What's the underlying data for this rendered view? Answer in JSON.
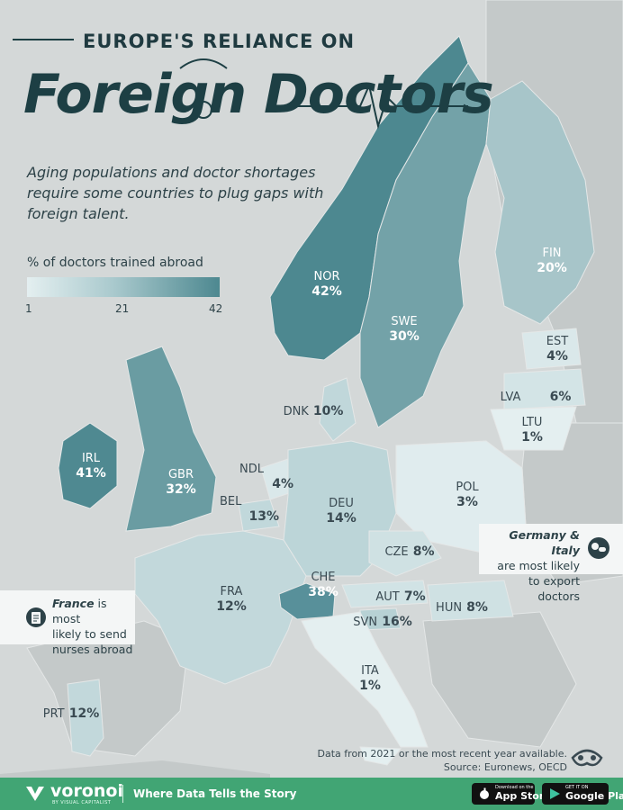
{
  "header": {
    "eyebrow": "EUROPE'S RELIANCE ON",
    "title": "Foreign Doctors",
    "subtitle": "Aging populations and doctor shortages require some countries to plug gaps with foreign talent."
  },
  "legend": {
    "title": "% of doctors trained abroad",
    "min": "1",
    "mid": "21",
    "max": "42",
    "color_low": "#e4eff0",
    "color_high": "#4d8890"
  },
  "countries": [
    {
      "code": "NOR",
      "value": "42%"
    },
    {
      "code": "SWE",
      "value": "30%"
    },
    {
      "code": "FIN",
      "value": "20%"
    },
    {
      "code": "EST",
      "value": "4%"
    },
    {
      "code": "LVA",
      "value": "6%"
    },
    {
      "code": "LTU",
      "value": "1%"
    },
    {
      "code": "DNK",
      "value": "10%"
    },
    {
      "code": "IRL",
      "value": "41%"
    },
    {
      "code": "GBR",
      "value": "32%"
    },
    {
      "code": "NDL",
      "value": "4%"
    },
    {
      "code": "BEL",
      "value": "13%"
    },
    {
      "code": "DEU",
      "value": "14%"
    },
    {
      "code": "POL",
      "value": "3%"
    },
    {
      "code": "CZE",
      "value": "8%"
    },
    {
      "code": "FRA",
      "value": "12%"
    },
    {
      "code": "CHE",
      "value": "38%"
    },
    {
      "code": "AUT",
      "value": "7%"
    },
    {
      "code": "HUN",
      "value": "8%"
    },
    {
      "code": "SVN",
      "value": "16%"
    },
    {
      "code": "ITA",
      "value": "1%"
    },
    {
      "code": "PRT",
      "value": "12%"
    }
  ],
  "callouts": {
    "germany_italy": {
      "bold": "Germany & Italy",
      "rest": "are most likely to export doctors"
    },
    "france": {
      "bold": "France",
      "rest1": "is most",
      "rest2": "likely to send nurses abroad"
    }
  },
  "source": {
    "line1": "Data from 2021 or the most recent year available.",
    "line2": "Source: Euronews, OECD"
  },
  "footer": {
    "brand": "voronoi",
    "brand_sub": "BY VISUAL CAPITALIST",
    "tagline": "Where Data Tells the Story",
    "appstore_top": "Download on the",
    "appstore": "App Store",
    "googleplay_top": "GET IT ON",
    "googleplay": "Google Play"
  },
  "icons": [
    "stethoscope-icon",
    "pills-icon",
    "clipboard-icon",
    "eye-mask-icon",
    "voronoi-logo-icon",
    "apple-icon",
    "play-icon"
  ]
}
